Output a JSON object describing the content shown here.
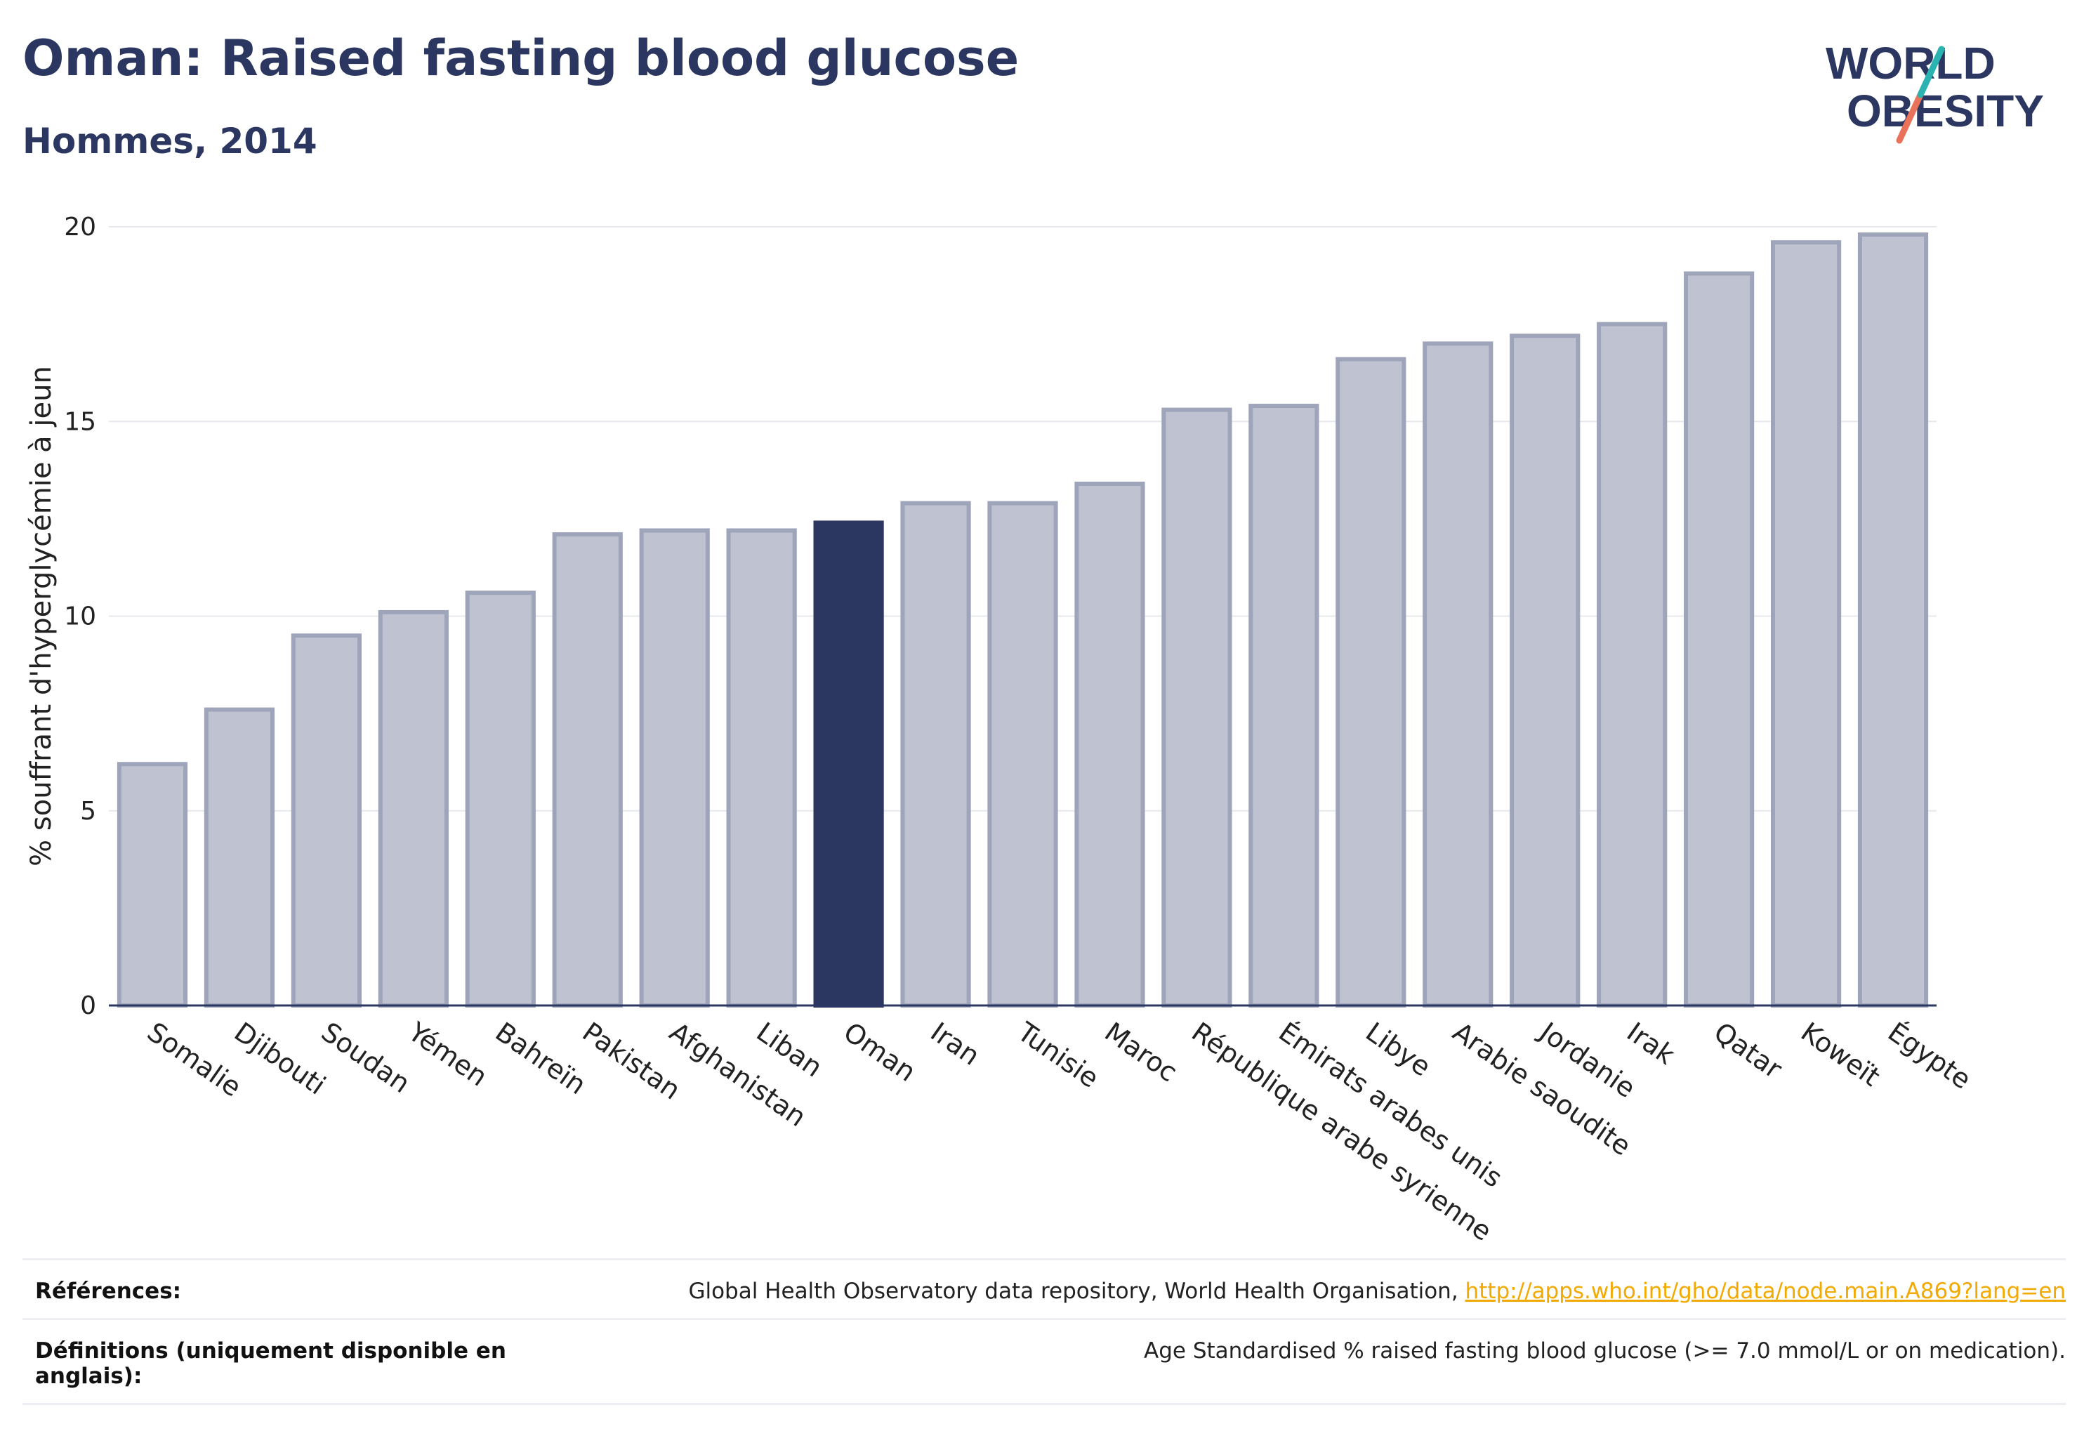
{
  "title": "Oman: Raised fasting blood glucose",
  "subtitle": "Hommes, 2014",
  "logo": {
    "line1": "WORLD",
    "line2": "OBESITY",
    "color": "#2b3760",
    "slash_teal": "#2bb3b1",
    "slash_coral": "#e8735a"
  },
  "colors": {
    "highlight": "#2b3760",
    "bar_fill": "#bfc3d1",
    "bar_stroke": "#9ea4ba",
    "grid": "#e6e8ee",
    "axis": "#2b3760"
  },
  "chart_data": {
    "type": "bar",
    "ylabel": "% souffrant d'hyperglycémie à jeun",
    "xlabel": "",
    "ylim": [
      0,
      20
    ],
    "yticks": [
      0,
      5,
      10,
      15,
      20
    ],
    "grid": true,
    "highlight": "Oman",
    "categories": [
      "Somalie",
      "Djibouti",
      "Soudan",
      "Yémen",
      "Bahreïn",
      "Pakistan",
      "Afghanistan",
      "Liban",
      "Oman",
      "Iran",
      "Tunisie",
      "Maroc",
      "République arabe syrienne",
      "Émirats arabes unis",
      "Libye",
      "Arabie saoudite",
      "Jordanie",
      "Irak",
      "Qatar",
      "Koweït",
      "Égypte"
    ],
    "values": [
      6.2,
      7.6,
      9.5,
      10.1,
      10.6,
      12.1,
      12.2,
      12.2,
      12.4,
      12.9,
      12.9,
      13.4,
      15.3,
      15.4,
      16.6,
      17.0,
      17.2,
      17.5,
      18.8,
      19.6,
      19.8
    ]
  },
  "footer": {
    "references_label": "Références:",
    "references_text": "Global Health Observatory data repository, World Health Organisation, ",
    "references_link": "http://apps.who.int/gho/data/node.main.A869?lang=en",
    "definitions_label": "Définitions (uniquement disponible en anglais):",
    "definitions_text": "Age Standardised % raised fasting blood glucose (>= 7.0 mmol/L or on medication)."
  }
}
